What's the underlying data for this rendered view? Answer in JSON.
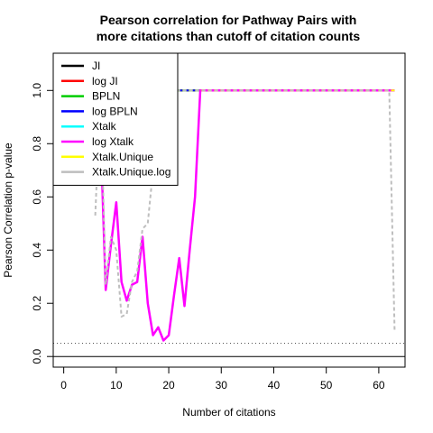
{
  "chart_data": {
    "type": "line",
    "title": [
      "Pearson correlation for Pathway Pairs with",
      "more citations than cutoff of citation counts"
    ],
    "xlabel": "Number of citations",
    "ylabel": "Pearson Correlation p-value",
    "xlim": [
      -2,
      65
    ],
    "ylim": [
      -0.04,
      1.14
    ],
    "x_ticks": [
      0,
      10,
      20,
      30,
      40,
      50,
      60
    ],
    "y_ticks": [
      0.0,
      0.2,
      0.4,
      0.6,
      0.8,
      1.0
    ],
    "legend_position": "top-left",
    "reference_lines": [
      {
        "y": 0.05,
        "style": "dotted",
        "color": "#555555"
      },
      {
        "y": 0.0,
        "style": "solid",
        "color": "#000000"
      }
    ],
    "series": [
      {
        "name": "JI",
        "color": "#000000",
        "dash": "solid",
        "x": [
          7,
          63
        ],
        "y": [
          1.0,
          1.0
        ]
      },
      {
        "name": "log JI",
        "color": "#ff0000",
        "dash": "solid",
        "x": [
          7,
          63
        ],
        "y": [
          1.0,
          1.0
        ]
      },
      {
        "name": "BPLN",
        "color": "#00cd00",
        "dash": "solid",
        "x": [
          7,
          63
        ],
        "y": [
          1.0,
          1.0
        ]
      },
      {
        "name": "log BPLN",
        "color": "#0000ff",
        "dash": "solid",
        "x": [
          7,
          63
        ],
        "y": [
          1.0,
          1.0
        ]
      },
      {
        "name": "Xtalk",
        "color": "#00ffff",
        "dash": "dashed",
        "x": [
          7,
          63
        ],
        "y": [
          1.0,
          1.0
        ]
      },
      {
        "name": "log Xtalk",
        "color": "#ff00ff",
        "dash": "solid",
        "x": [
          7,
          8,
          9,
          10,
          11,
          12,
          13,
          14,
          15,
          16,
          17,
          18,
          19,
          20,
          21,
          22,
          23,
          24,
          25,
          26,
          63
        ],
        "y": [
          0.85,
          0.25,
          0.42,
          0.58,
          0.28,
          0.21,
          0.27,
          0.28,
          0.45,
          0.2,
          0.08,
          0.11,
          0.06,
          0.08,
          0.23,
          0.37,
          0.19,
          0.4,
          0.6,
          1.0,
          1.0
        ]
      },
      {
        "name": "Xtalk.Unique",
        "color": "#ffff00",
        "dash": "dashed",
        "x": [
          7,
          63
        ],
        "y": [
          1.0,
          1.0
        ]
      },
      {
        "name": "Xtalk.Unique.log",
        "color": "#bebebe",
        "dash": "dashed",
        "x": [
          6,
          7,
          8,
          9,
          10,
          11,
          12,
          13,
          14,
          15,
          16,
          17,
          18,
          62,
          63
        ],
        "y": [
          0.53,
          1.0,
          0.27,
          0.45,
          0.4,
          0.15,
          0.16,
          0.28,
          0.32,
          0.48,
          0.5,
          0.7,
          1.0,
          1.0,
          0.1
        ]
      }
    ]
  }
}
